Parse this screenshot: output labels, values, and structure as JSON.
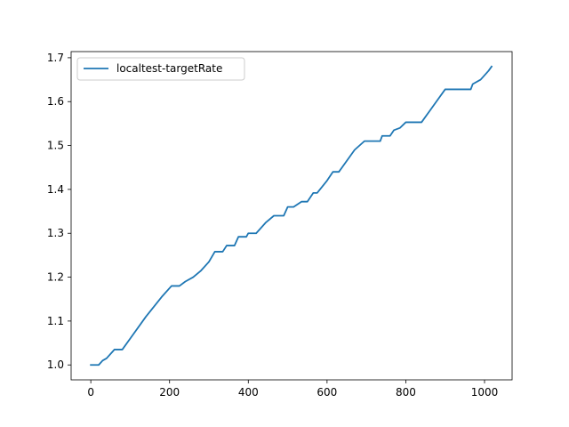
{
  "chart_data": {
    "type": "line",
    "title": "",
    "xlabel": "",
    "ylabel": "",
    "xlim": [
      -50,
      1070
    ],
    "ylim": [
      0.966,
      1.714
    ],
    "xticks": [
      0,
      200,
      400,
      600,
      800,
      1000
    ],
    "yticks": [
      1.0,
      1.1,
      1.2,
      1.3,
      1.4,
      1.5,
      1.6,
      1.7
    ],
    "xtick_labels": [
      "0",
      "200",
      "400",
      "600",
      "800",
      "1000"
    ],
    "ytick_labels": [
      "1.0",
      "1.1",
      "1.2",
      "1.3",
      "1.4",
      "1.5",
      "1.6",
      "1.7"
    ],
    "grid": false,
    "legend_position": "upper-left",
    "legend_entries": [
      "localtest-targetRate"
    ],
    "series": [
      {
        "name": "localtest-targetRate",
        "color": "#1f77b4",
        "x": [
          0,
          20,
          30,
          40,
          60,
          80,
          100,
          140,
          180,
          205,
          225,
          240,
          260,
          280,
          300,
          315,
          335,
          345,
          365,
          375,
          395,
          400,
          420,
          445,
          465,
          490,
          500,
          515,
          535,
          550,
          565,
          575,
          600,
          615,
          630,
          650,
          670,
          695,
          700,
          735,
          740,
          760,
          770,
          785,
          800,
          840,
          860,
          880,
          900,
          965,
          970,
          990,
          1010,
          1018
        ],
        "y": [
          1.0,
          1.0,
          1.01,
          1.015,
          1.035,
          1.035,
          1.06,
          1.11,
          1.155,
          1.18,
          1.18,
          1.19,
          1.2,
          1.215,
          1.235,
          1.258,
          1.258,
          1.272,
          1.272,
          1.292,
          1.292,
          1.3,
          1.3,
          1.325,
          1.34,
          1.34,
          1.36,
          1.36,
          1.372,
          1.372,
          1.392,
          1.392,
          1.42,
          1.44,
          1.44,
          1.465,
          1.49,
          1.51,
          1.51,
          1.51,
          1.522,
          1.522,
          1.535,
          1.54,
          1.553,
          1.553,
          1.578,
          1.603,
          1.628,
          1.628,
          1.64,
          1.65,
          1.67,
          1.68
        ]
      }
    ]
  }
}
